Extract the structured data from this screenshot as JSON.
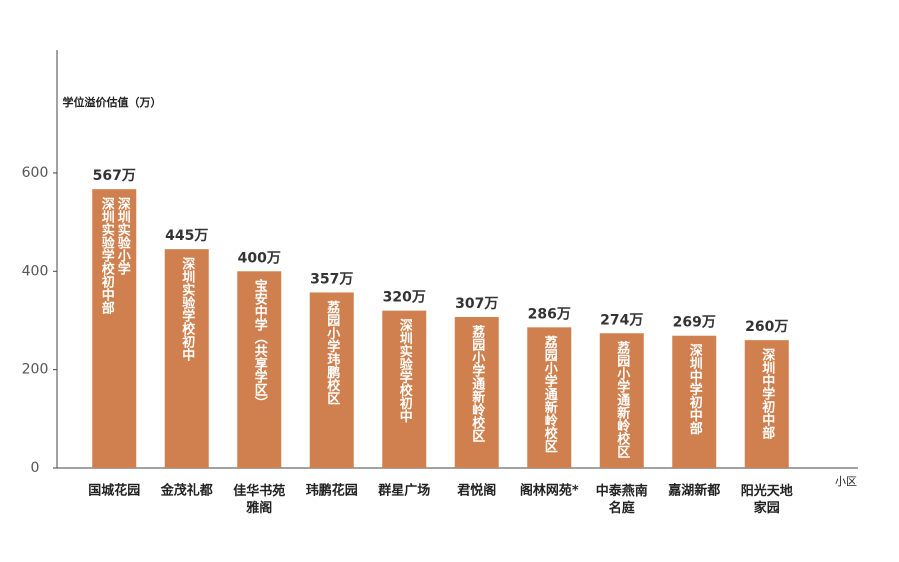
{
  "chart_data": {
    "type": "bar",
    "y_axis_label": "学位溢价估值（万）",
    "x_axis_label": "小区",
    "categories": [
      "国城花园",
      "金茂礼都",
      "佳华书苑雅阁",
      "玮鹏花园",
      "群星广场",
      "君悦阁",
      "阁林网苑*",
      "中泰燕南名庭",
      "嘉湖新都",
      "阳光天地家园"
    ],
    "values": [
      567,
      445,
      400,
      357,
      320,
      307,
      286,
      274,
      269,
      260
    ],
    "value_labels": [
      "567万",
      "445万",
      "400万",
      "357万",
      "320万",
      "307万",
      "286万",
      "274万",
      "269万",
      "260万"
    ],
    "bar_labels": [
      [
        "深圳实验小学",
        "深圳实验学校初中部"
      ],
      [
        "深圳实验学校初中"
      ],
      [
        "宝安中学（共享学区）"
      ],
      [
        "荔园小学玮鹏校区"
      ],
      [
        "深圳实验学校初中"
      ],
      [
        "荔园小学通新岭校区"
      ],
      [
        "荔园小学通新岭校区"
      ],
      [
        "荔园小学通新岭校区"
      ],
      [
        "深圳中学初中部"
      ],
      [
        "深圳中学初中部"
      ]
    ],
    "color": "#d0804e",
    "ylim": [
      0,
      850
    ],
    "yticks": [
      0,
      200,
      400,
      600
    ],
    "grid": false
  }
}
